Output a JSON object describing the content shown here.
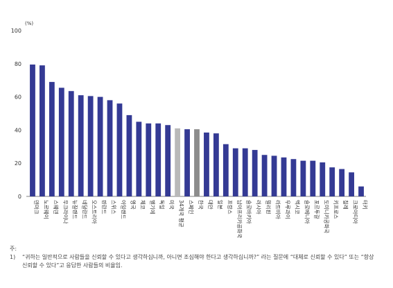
{
  "chart_data": {
    "type": "bar",
    "unit_label": "(%)",
    "ylim": [
      0,
      100
    ],
    "yticks": [
      0,
      20,
      40,
      60,
      80,
      100
    ],
    "grid": false,
    "categories": [
      "덴마크",
      "노르웨이",
      "스웨덴",
      "우크라이나",
      "뉴질랜드",
      "네덜란드",
      "오스트리아",
      "핀란드",
      "스위스",
      "아일랜드",
      "영국",
      "체코",
      "벨기에",
      "독일",
      "미국",
      "34개국 평균",
      "스페인",
      "한국",
      "대만",
      "일본",
      "프랑스",
      "남아프리카공화국",
      "슬로바키아",
      "러시아",
      "필리핀",
      "라트비아",
      "우루과이",
      "멕시코",
      "슬로베니아",
      "포르투갈",
      "도미니카공화국",
      "키프로스",
      "칠레",
      "크로아티아",
      "터키"
    ],
    "values": [
      79.5,
      79,
      69,
      65.5,
      63.5,
      61,
      60.5,
      60,
      58,
      56,
      49,
      45,
      44,
      44,
      43,
      41,
      40.5,
      40.5,
      38.5,
      38,
      31.5,
      29,
      29,
      28,
      25,
      24.5,
      23.5,
      22.5,
      21.5,
      21.5,
      20.5,
      17.5,
      16.5,
      14.5,
      6
    ],
    "colors": {
      "default": "#343a94",
      "average": "#b9b9b9",
      "korea": "#8c8c8c"
    },
    "highlight": {
      "average_index": 15,
      "korea_index": 17
    }
  },
  "footnote": {
    "prefix": "주: 1)",
    "line1": "“귀하는 일반적으로 사람들을 신뢰할 수 있다고 생각하십니까, 아니면 조심해야 한다고 생각하십니까?” 라는 질문에 “대체로 신뢰할 수 있다” 또는 “항상",
    "line2": "신뢰할 수 있다”고 응답한 사람들의 비율임."
  }
}
